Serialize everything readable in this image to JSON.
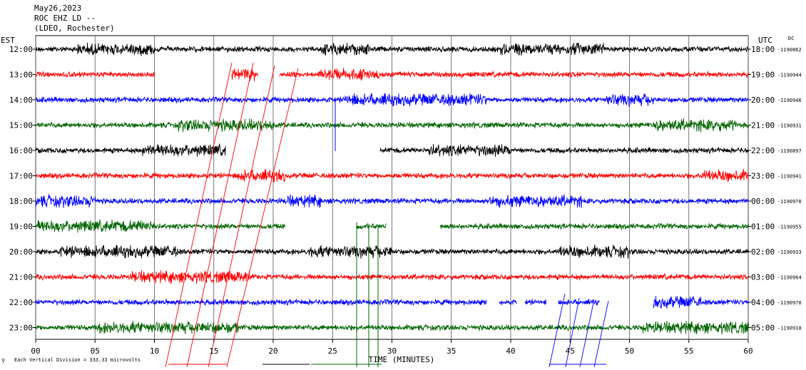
{
  "header": {
    "date": "May26,2023",
    "station": "ROC EHZ LD --",
    "network": "(LDEO, Rochester)"
  },
  "left_tz_label": "EST",
  "right_tz_label": "UTC",
  "dc_label": "DC",
  "x_axis_title": "TIME (MINUTES)",
  "scale_note": "Each Vertical Division =  333.33 microvolts",
  "chart_data": {
    "type": "line",
    "title": "",
    "xlabel": "TIME (MINUTES)",
    "xlim": [
      0,
      60
    ],
    "x_ticks": [
      "00",
      "05",
      "10",
      "15",
      "20",
      "25",
      "30",
      "35",
      "40",
      "45",
      "50",
      "55",
      "60"
    ],
    "grid_vertical": true,
    "trace_colors": [
      "#000000",
      "#ff0000",
      "#0000ff",
      "#006400"
    ],
    "rows": [
      {
        "est": "12:00",
        "utc": "18:00",
        "dc": "-1190862",
        "gaps": [],
        "burst": [
          [
            3.5,
            10
          ],
          [
            24,
            28
          ],
          [
            39,
            48
          ]
        ]
      },
      {
        "est": "13:00",
        "utc": "19:00",
        "dc": "-1190944",
        "gaps": [
          [
            10,
            16.5
          ],
          [
            18.7,
            20.5
          ]
        ],
        "burst": [
          [
            16.5,
            18.5
          ],
          [
            24,
            29
          ]
        ]
      },
      {
        "est": "14:00",
        "utc": "20:00",
        "dc": "-1190946",
        "gaps": [],
        "burst": [
          [
            26,
            38
          ],
          [
            48,
            52
          ]
        ]
      },
      {
        "est": "15:00",
        "utc": "21:00",
        "dc": "-1190931",
        "gaps": [],
        "burst": [
          [
            12,
            20
          ],
          [
            52,
            59
          ]
        ]
      },
      {
        "est": "16:00",
        "utc": "22:00",
        "dc": "-1190897",
        "gaps": [
          [
            16,
            29
          ]
        ],
        "burst": [
          [
            9,
            16
          ],
          [
            33,
            40
          ]
        ]
      },
      {
        "est": "17:00",
        "utc": "23:00",
        "dc": "-1190941",
        "gaps": [],
        "burst": [
          [
            17,
            21
          ],
          [
            56,
            60
          ]
        ]
      },
      {
        "est": "18:00",
        "utc": "00:00",
        "dc": "-1190970",
        "gaps": [],
        "burst": [
          [
            0,
            5
          ],
          [
            21,
            24
          ],
          [
            38,
            46
          ]
        ]
      },
      {
        "est": "19:00",
        "utc": "01:00",
        "dc": "-1190955",
        "gaps": [
          [
            21,
            27
          ],
          [
            29.5,
            34
          ]
        ],
        "burst": [
          [
            0,
            10
          ]
        ]
      },
      {
        "est": "20:00",
        "utc": "02:00",
        "dc": "-1190933",
        "gaps": [],
        "burst": [
          [
            2,
            12
          ],
          [
            23,
            30
          ],
          [
            44,
            50
          ]
        ]
      },
      {
        "est": "21:00",
        "utc": "03:00",
        "dc": "-1190964",
        "gaps": [],
        "burst": [
          [
            8,
            18
          ]
        ]
      },
      {
        "est": "22:00",
        "utc": "04:00",
        "dc": "-1190970",
        "gaps": [
          [
            38,
            39
          ],
          [
            40.5,
            41.2
          ],
          [
            43,
            44
          ],
          [
            47.5,
            52
          ]
        ],
        "burst": [
          [
            52,
            56
          ]
        ]
      },
      {
        "est": "23:00",
        "utc": "05:00",
        "dc": "-1190918",
        "gaps": [],
        "burst": [
          [
            5,
            17
          ],
          [
            51,
            60
          ]
        ]
      }
    ]
  }
}
